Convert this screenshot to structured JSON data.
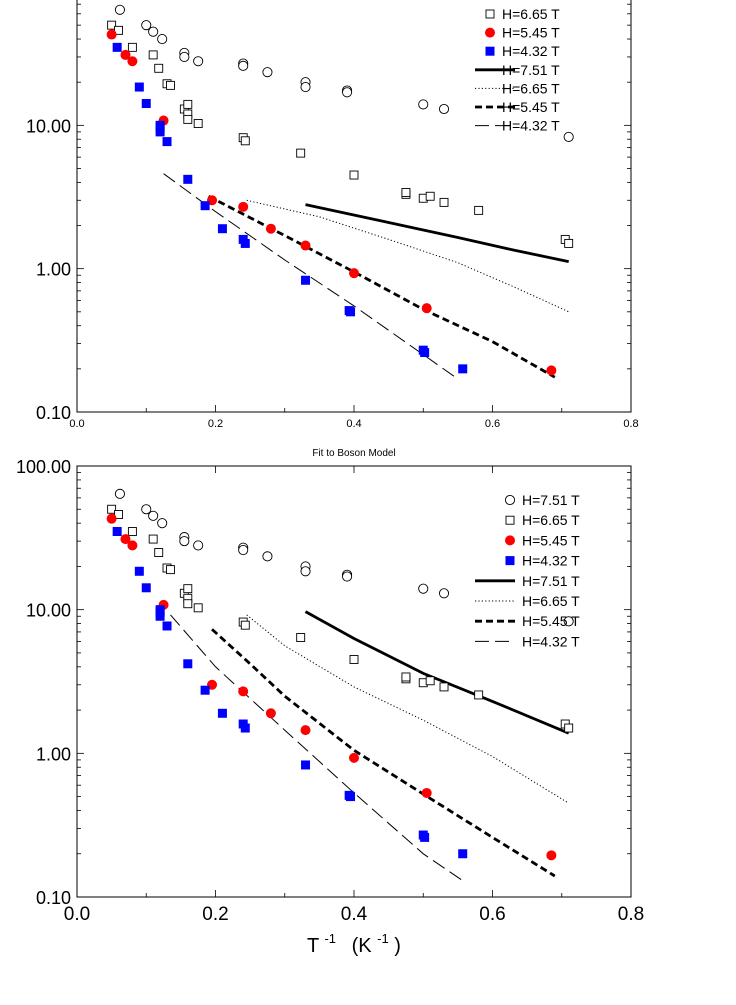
{
  "chart_data": [
    {
      "type": "scatter",
      "title": "",
      "xlabel": "",
      "ylabel": "",
      "xlim": [
        0,
        0.8
      ],
      "ylim": [
        0.1,
        100
      ],
      "yscale": "log",
      "xticks": [
        "0.0",
        "0.2",
        "0.4",
        "0.6",
        "0.8"
      ],
      "yticks": [
        "0.10",
        "1.00",
        "10.00"
      ],
      "legend_position": "top-right",
      "legend_entries": [
        "H=6.65 T",
        "H=5.45 T",
        "H=4.32 T",
        "H=7.51 T",
        "H=6.65 T",
        "H=5.45 T",
        "H=4.32 T"
      ],
      "series": [
        {
          "name": "H=7.51 T",
          "kind": "points",
          "marker": "open-circle",
          "color": "#000000",
          "points": [
            [
              0.062,
              64
            ],
            [
              0.1,
              50
            ],
            [
              0.11,
              45
            ],
            [
              0.123,
              40
            ],
            [
              0.155,
              32
            ],
            [
              0.155,
              30
            ],
            [
              0.175,
              28
            ],
            [
              0.24,
              27
            ],
            [
              0.24,
              26
            ],
            [
              0.275,
              23.5
            ],
            [
              0.33,
              20
            ],
            [
              0.33,
              18.5
            ],
            [
              0.39,
              17.5
            ],
            [
              0.39,
              17
            ],
            [
              0.5,
              14
            ],
            [
              0.53,
              13
            ],
            [
              0.71,
              8.3
            ]
          ]
        },
        {
          "name": "H=6.65 T",
          "kind": "points",
          "marker": "open-square",
          "color": "#000000",
          "points": [
            [
              0.05,
              50
            ],
            [
              0.06,
              46
            ],
            [
              0.08,
              35
            ],
            [
              0.11,
              31
            ],
            [
              0.118,
              25
            ],
            [
              0.13,
              19.5
            ],
            [
              0.135,
              19
            ],
            [
              0.155,
              13
            ],
            [
              0.16,
              14
            ],
            [
              0.16,
              12
            ],
            [
              0.16,
              11
            ],
            [
              0.175,
              10.3
            ],
            [
              0.24,
              8.2
            ],
            [
              0.243,
              7.8
            ],
            [
              0.323,
              6.4
            ],
            [
              0.4,
              4.5
            ],
            [
              0.475,
              3.3
            ],
            [
              0.475,
              3.4
            ],
            [
              0.5,
              3.1
            ],
            [
              0.51,
              3.2
            ],
            [
              0.53,
              2.9
            ],
            [
              0.58,
              2.55
            ],
            [
              0.705,
              1.6
            ],
            [
              0.71,
              1.5
            ]
          ]
        },
        {
          "name": "H=5.45 T",
          "kind": "points",
          "marker": "filled-circle",
          "color": "#ff0000",
          "points": [
            [
              0.05,
              43
            ],
            [
              0.07,
              31
            ],
            [
              0.08,
              28
            ],
            [
              0.125,
              10.8
            ],
            [
              0.195,
              3
            ],
            [
              0.24,
              2.7
            ],
            [
              0.28,
              1.9
            ],
            [
              0.33,
              1.45
            ],
            [
              0.4,
              0.93
            ],
            [
              0.505,
              0.53
            ],
            [
              0.685,
              0.195
            ]
          ]
        },
        {
          "name": "H=4.32 T",
          "kind": "points",
          "marker": "filled-square",
          "color": "#0000ff",
          "points": [
            [
              0.058,
              35
            ],
            [
              0.09,
              18.5
            ],
            [
              0.1,
              14.2
            ],
            [
              0.12,
              10
            ],
            [
              0.12,
              9.6
            ],
            [
              0.12,
              9
            ],
            [
              0.13,
              7.7
            ],
            [
              0.16,
              4.2
            ],
            [
              0.185,
              2.75
            ],
            [
              0.21,
              1.9
            ],
            [
              0.24,
              1.6
            ],
            [
              0.243,
              1.5
            ],
            [
              0.33,
              0.83
            ],
            [
              0.393,
              0.51
            ],
            [
              0.395,
              0.5
            ],
            [
              0.5,
              0.27
            ],
            [
              0.502,
              0.26
            ],
            [
              0.557,
              0.2
            ]
          ]
        },
        {
          "name": "H=7.51 T",
          "kind": "line",
          "style": "solid-thick",
          "points": [
            [
              0.33,
              2.8
            ],
            [
              0.45,
              2.1
            ],
            [
              0.55,
              1.65
            ],
            [
              0.63,
              1.35
            ],
            [
              0.71,
              1.12
            ]
          ]
        },
        {
          "name": "H=6.65 T",
          "kind": "line",
          "style": "dotted",
          "points": [
            [
              0.245,
              3
            ],
            [
              0.35,
              2.3
            ],
            [
              0.45,
              1.6
            ],
            [
              0.55,
              1.1
            ],
            [
              0.63,
              0.75
            ],
            [
              0.71,
              0.5
            ]
          ]
        },
        {
          "name": "H=5.45 T",
          "kind": "line",
          "style": "dashed-thick",
          "points": [
            [
              0.19,
              3.2
            ],
            [
              0.3,
              1.7
            ],
            [
              0.4,
              0.95
            ],
            [
              0.5,
              0.52
            ],
            [
              0.6,
              0.31
            ],
            [
              0.69,
              0.175
            ]
          ]
        },
        {
          "name": "H=4.32 T",
          "kind": "line",
          "style": "long-dash",
          "points": [
            [
              0.125,
              4.6
            ],
            [
              0.2,
              2.5
            ],
            [
              0.3,
              1.15
            ],
            [
              0.4,
              0.55
            ],
            [
              0.55,
              0.17
            ]
          ]
        }
      ]
    },
    {
      "type": "scatter",
      "title": "Fit to Boson Model",
      "xlabel_base": "T",
      "xlabel_exp": "-1",
      "xlabel_unit": "(K",
      "xlabel_unit_exp": "-1",
      "xlabel_close": ")",
      "ylabel": "",
      "xlim": [
        0,
        0.8
      ],
      "ylim": [
        0.1,
        100
      ],
      "yscale": "log",
      "xticks": [
        "0.0",
        "0.2",
        "0.4",
        "0.6",
        "0.8"
      ],
      "yticks": [
        "0.10",
        "1.00",
        "10.00",
        "100.00"
      ],
      "legend_position": "top-right",
      "legend_entries": [
        "H=7.51 T",
        "H=6.65 T",
        "H=5.45 T",
        "H=4.32 T",
        "H=7.51 T",
        "H=6.65 T",
        "H=5.45 T",
        "H=4.32 T"
      ],
      "series": [
        {
          "name": "H=7.51 T",
          "kind": "points",
          "marker": "open-circle",
          "color": "#000000",
          "points": [
            [
              0.062,
              64
            ],
            [
              0.1,
              50
            ],
            [
              0.11,
              45
            ],
            [
              0.123,
              40
            ],
            [
              0.155,
              32
            ],
            [
              0.155,
              30
            ],
            [
              0.175,
              28
            ],
            [
              0.24,
              27
            ],
            [
              0.24,
              26
            ],
            [
              0.275,
              23.5
            ],
            [
              0.33,
              20
            ],
            [
              0.33,
              18.5
            ],
            [
              0.39,
              17.5
            ],
            [
              0.39,
              17
            ],
            [
              0.5,
              14
            ],
            [
              0.53,
              13
            ],
            [
              0.71,
              8.3
            ]
          ]
        },
        {
          "name": "H=6.65 T",
          "kind": "points",
          "marker": "open-square",
          "color": "#000000",
          "points": [
            [
              0.05,
              50
            ],
            [
              0.06,
              46
            ],
            [
              0.08,
              35
            ],
            [
              0.11,
              31
            ],
            [
              0.118,
              25
            ],
            [
              0.13,
              19.5
            ],
            [
              0.135,
              19
            ],
            [
              0.155,
              13
            ],
            [
              0.16,
              14
            ],
            [
              0.16,
              12
            ],
            [
              0.16,
              11
            ],
            [
              0.175,
              10.3
            ],
            [
              0.24,
              8.2
            ],
            [
              0.243,
              7.8
            ],
            [
              0.323,
              6.4
            ],
            [
              0.4,
              4.5
            ],
            [
              0.475,
              3.3
            ],
            [
              0.475,
              3.4
            ],
            [
              0.5,
              3.1
            ],
            [
              0.51,
              3.2
            ],
            [
              0.53,
              2.9
            ],
            [
              0.58,
              2.55
            ],
            [
              0.705,
              1.6
            ],
            [
              0.71,
              1.5
            ]
          ]
        },
        {
          "name": "H=5.45 T",
          "kind": "points",
          "marker": "filled-circle",
          "color": "#ff0000",
          "points": [
            [
              0.05,
              43
            ],
            [
              0.07,
              31
            ],
            [
              0.08,
              28
            ],
            [
              0.125,
              10.8
            ],
            [
              0.195,
              3
            ],
            [
              0.24,
              2.7
            ],
            [
              0.28,
              1.9
            ],
            [
              0.33,
              1.45
            ],
            [
              0.4,
              0.93
            ],
            [
              0.505,
              0.53
            ],
            [
              0.685,
              0.195
            ]
          ]
        },
        {
          "name": "H=4.32 T",
          "kind": "points",
          "marker": "filled-square",
          "color": "#0000ff",
          "points": [
            [
              0.058,
              35
            ],
            [
              0.09,
              18.5
            ],
            [
              0.1,
              14.2
            ],
            [
              0.12,
              10
            ],
            [
              0.12,
              9.6
            ],
            [
              0.12,
              9
            ],
            [
              0.13,
              7.7
            ],
            [
              0.16,
              4.2
            ],
            [
              0.185,
              2.75
            ],
            [
              0.21,
              1.9
            ],
            [
              0.24,
              1.6
            ],
            [
              0.243,
              1.5
            ],
            [
              0.33,
              0.83
            ],
            [
              0.393,
              0.51
            ],
            [
              0.395,
              0.5
            ],
            [
              0.5,
              0.27
            ],
            [
              0.502,
              0.26
            ],
            [
              0.557,
              0.2
            ]
          ]
        },
        {
          "name": "H=7.51 T",
          "kind": "line",
          "style": "solid-thick",
          "points": [
            [
              0.33,
              9.7
            ],
            [
              0.4,
              6.3
            ],
            [
              0.5,
              3.6
            ],
            [
              0.6,
              2.3
            ],
            [
              0.71,
              1.38
            ]
          ]
        },
        {
          "name": "H=6.65 T",
          "kind": "line",
          "style": "dotted",
          "points": [
            [
              0.245,
              9.2
            ],
            [
              0.3,
              5.6
            ],
            [
              0.4,
              2.9
            ],
            [
              0.5,
              1.7
            ],
            [
              0.6,
              0.95
            ],
            [
              0.71,
              0.45
            ]
          ]
        },
        {
          "name": "H=5.45 T",
          "kind": "line",
          "style": "dashed-thick",
          "points": [
            [
              0.195,
              7.3
            ],
            [
              0.25,
              4.2
            ],
            [
              0.3,
              2.5
            ],
            [
              0.4,
              1.05
            ],
            [
              0.5,
              0.52
            ],
            [
              0.6,
              0.26
            ],
            [
              0.69,
              0.14
            ]
          ]
        },
        {
          "name": "H=4.32 T",
          "kind": "line",
          "style": "long-dash",
          "points": [
            [
              0.135,
              9.2
            ],
            [
              0.2,
              4
            ],
            [
              0.3,
              1.45
            ],
            [
              0.4,
              0.53
            ],
            [
              0.5,
              0.2
            ],
            [
              0.557,
              0.13
            ]
          ]
        }
      ]
    }
  ]
}
